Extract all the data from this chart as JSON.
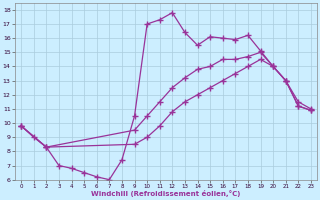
{
  "xlabel": "Windchill (Refroidissement éolien,°C)",
  "bg_color": "#cceeff",
  "grid_color": "#aaccdd",
  "line_color": "#993399",
  "marker": "+",
  "markersize": 4,
  "markeredgewidth": 1.0,
  "linewidth": 0.9,
  "xlim": [
    -0.5,
    23.5
  ],
  "ylim": [
    6,
    18.5
  ],
  "xticks": [
    0,
    1,
    2,
    3,
    4,
    5,
    6,
    7,
    8,
    9,
    10,
    11,
    12,
    13,
    14,
    15,
    16,
    17,
    18,
    19,
    20,
    21,
    22,
    23
  ],
  "yticks": [
    6,
    7,
    8,
    9,
    10,
    11,
    12,
    13,
    14,
    15,
    16,
    17,
    18
  ],
  "series": [
    {
      "x": [
        0,
        1,
        2,
        3,
        4,
        5,
        6,
        7,
        8,
        9,
        10,
        11,
        12,
        13,
        14,
        15,
        16,
        17,
        18,
        19,
        20,
        21,
        22,
        23
      ],
      "y": [
        9.8,
        9.0,
        8.3,
        7.0,
        6.8,
        6.5,
        6.2,
        6.0,
        7.4,
        10.5,
        17.0,
        17.3,
        17.8,
        16.4,
        15.5,
        16.1,
        16.0,
        15.9,
        16.2,
        15.1,
        14.0,
        13.0,
        11.5,
        11.0
      ]
    },
    {
      "x": [
        0,
        2,
        9,
        10,
        11,
        12,
        13,
        14,
        15,
        16,
        17,
        18,
        19,
        20,
        21,
        22,
        23
      ],
      "y": [
        9.8,
        8.3,
        9.5,
        10.5,
        11.5,
        12.5,
        13.2,
        13.8,
        14.0,
        14.5,
        14.5,
        14.7,
        15.0,
        14.0,
        13.0,
        11.2,
        10.9
      ]
    },
    {
      "x": [
        0,
        2,
        9,
        10,
        11,
        12,
        13,
        14,
        15,
        16,
        17,
        18,
        19,
        20,
        21,
        22,
        23
      ],
      "y": [
        9.8,
        8.3,
        8.5,
        9.0,
        9.8,
        10.8,
        11.5,
        12.0,
        12.5,
        13.0,
        13.5,
        14.0,
        14.5,
        14.0,
        13.0,
        11.2,
        10.9
      ]
    }
  ]
}
